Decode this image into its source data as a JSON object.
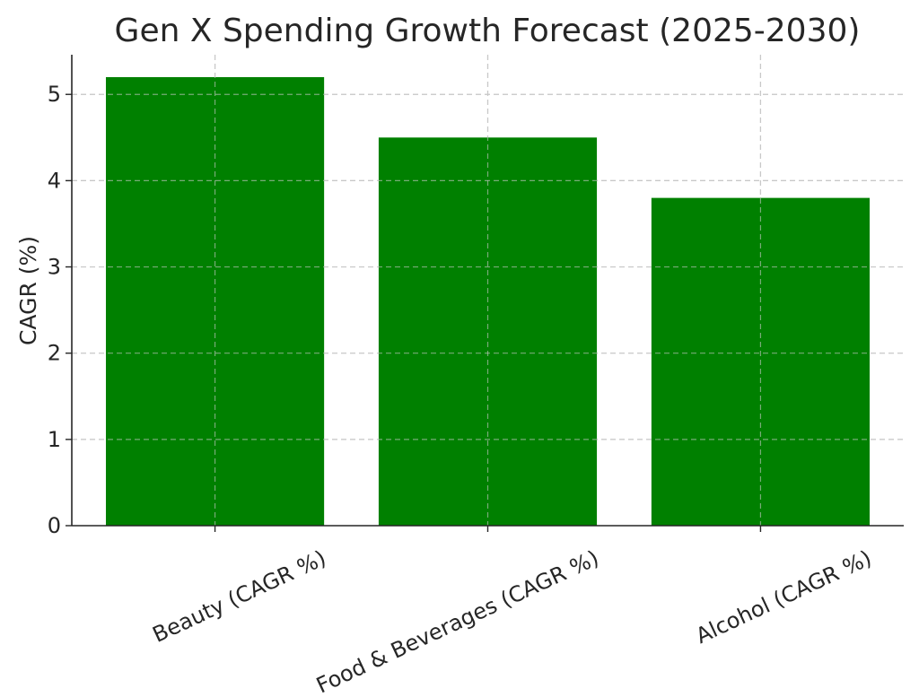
{
  "chart_data": {
    "type": "bar",
    "title": "Gen X Spending Growth Forecast (2025-2030)",
    "xlabel": "",
    "ylabel": "CAGR (%)",
    "categories": [
      "Beauty (CAGR %)",
      "Food & Beverages (CAGR %)",
      "Alcohol (CAGR %)"
    ],
    "values": [
      5.2,
      4.5,
      3.8
    ],
    "yticks": [
      0,
      1,
      2,
      3,
      4,
      5
    ],
    "ylim": [
      0,
      5.46
    ],
    "grid": true,
    "bar_color": "#008000"
  }
}
